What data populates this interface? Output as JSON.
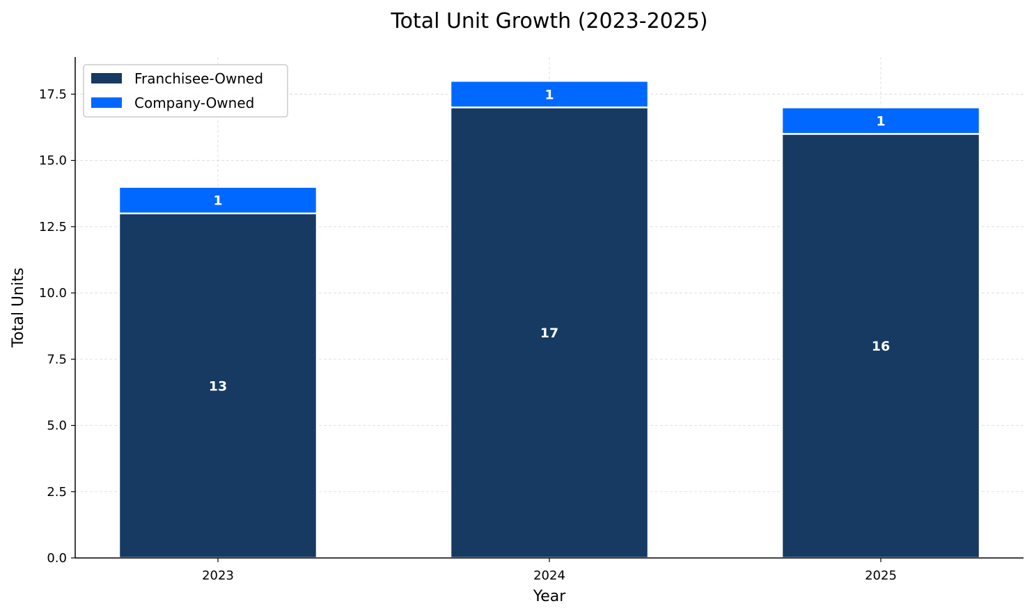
{
  "chart_data": {
    "type": "bar",
    "stacked": true,
    "title": "Total Unit Growth (2023-2025)",
    "xlabel": "Year",
    "ylabel": "Total Units",
    "categories": [
      "2023",
      "2024",
      "2025"
    ],
    "series": [
      {
        "name": "Franchisee-Owned",
        "values": [
          13,
          17,
          16
        ],
        "color": "#163a62"
      },
      {
        "name": "Company-Owned",
        "values": [
          1,
          1,
          1
        ],
        "color": "#0068ff"
      }
    ],
    "ylim": [
      0,
      18.9
    ],
    "yticks": [
      "0.0",
      "2.5",
      "5.0",
      "7.5",
      "10.0",
      "12.5",
      "15.0",
      "17.5"
    ],
    "grid": true,
    "legend_position": "top-left"
  }
}
